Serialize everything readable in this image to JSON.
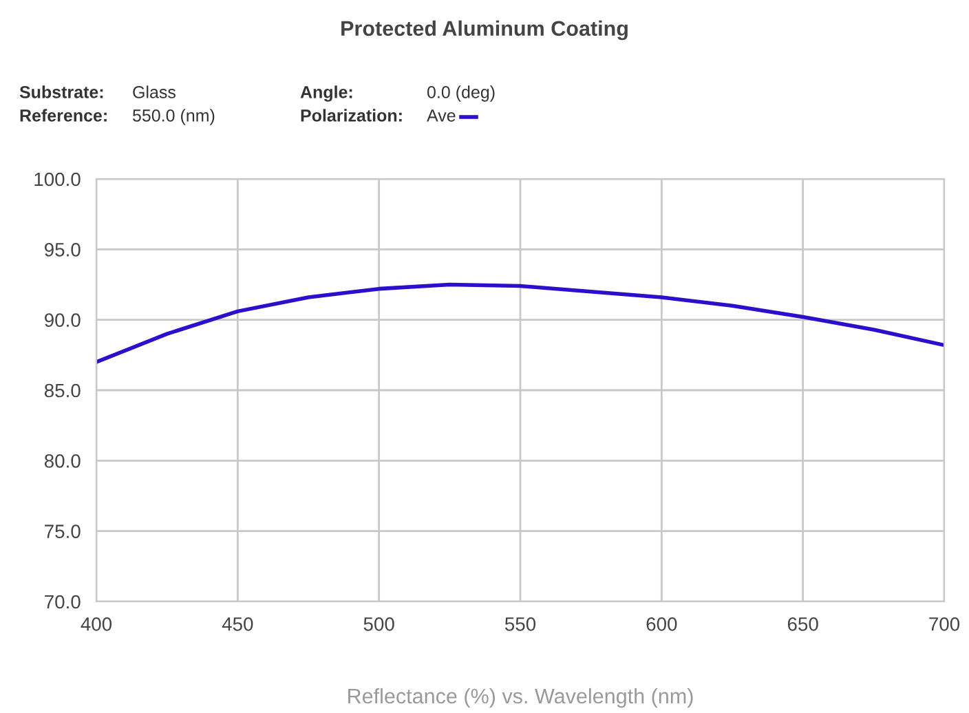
{
  "chart_data": {
    "type": "line",
    "title": "Protected Aluminum Coating",
    "annotations": [
      "Substrate:",
      "Glass",
      "Reference:",
      "550.0 (nm)",
      "Angle:",
      "0.0 (deg)",
      "Polarization:"
    ],
    "xlabel": "Reflectance (%) vs. Wavelength (nm)",
    "x": [
      400,
      425,
      450,
      475,
      500,
      525,
      550,
      575,
      600,
      625,
      650,
      675,
      700
    ],
    "series": [
      {
        "name": "Ave",
        "color": "#2a0fcc",
        "values": [
          87.0,
          89.0,
          90.6,
          91.6,
          92.2,
          92.5,
          92.4,
          92.0,
          91.6,
          91.0,
          90.2,
          89.3,
          88.2
        ]
      }
    ],
    "xlim": [
      400,
      700
    ],
    "xticks": [
      400,
      450,
      500,
      550,
      600,
      650,
      700
    ],
    "ylim": [
      70,
      100
    ],
    "yticks": [
      {
        "value": 70,
        "label": "70.0"
      },
      {
        "value": 75,
        "label": "75.0"
      },
      {
        "value": 80,
        "label": "80.0"
      },
      {
        "value": 85,
        "label": "85.0"
      },
      {
        "value": 90,
        "label": "90.0"
      },
      {
        "value": 95,
        "label": "95.0"
      },
      {
        "value": 100,
        "label": "100.0"
      }
    ],
    "grid": true,
    "legend": "top",
    "marker": "none",
    "line_style": "solid"
  }
}
